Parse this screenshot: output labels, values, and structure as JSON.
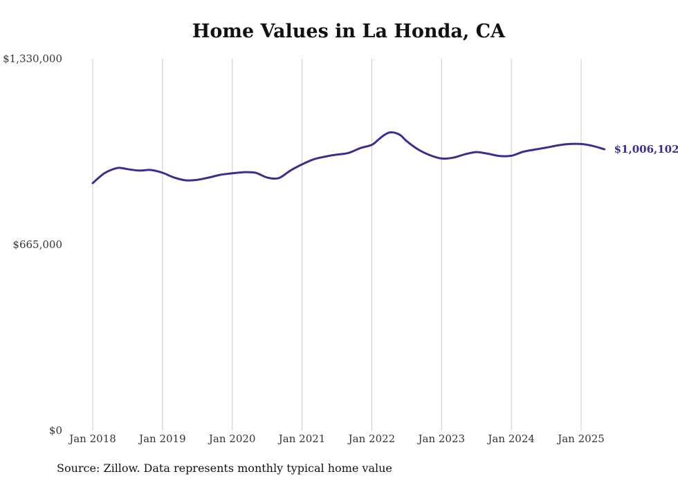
{
  "title": "Home Values in La Honda, CA",
  "source": "Source: Zillow. Data represents monthly typical home value",
  "colors": {
    "line": "#3b2e8c",
    "grid": "#c8c8c8"
  },
  "chart_data": {
    "type": "line",
    "title": "Home Values in La Honda, CA",
    "xlabel": "",
    "ylabel": "",
    "ylim": [
      0,
      1330000
    ],
    "y_ticks": [
      {
        "value": 0,
        "label": "$0"
      },
      {
        "value": 665000,
        "label": "$665,000"
      },
      {
        "value": 1330000,
        "label": "$1,330,000"
      }
    ],
    "x_ticks": [
      {
        "value": 0,
        "label": "Jan 2018"
      },
      {
        "value": 12,
        "label": "Jan 2019"
      },
      {
        "value": 24,
        "label": "Jan 2020"
      },
      {
        "value": 36,
        "label": "Jan 2021"
      },
      {
        "value": 48,
        "label": "Jan 2022"
      },
      {
        "value": 60,
        "label": "Jan 2023"
      },
      {
        "value": 72,
        "label": "Jan 2024"
      },
      {
        "value": 84,
        "label": "Jan 2025"
      }
    ],
    "x_unit": "months since Jan 2018",
    "grid": "vertical",
    "end_label": "$1,006,102",
    "series": [
      {
        "name": "",
        "x": [
          0,
          2,
          4,
          5,
          6,
          8,
          10,
          12,
          14,
          16,
          18,
          20,
          22,
          24,
          26,
          28,
          30,
          32,
          34,
          36,
          38,
          40,
          42,
          44,
          46,
          48,
          49,
          50,
          51,
          52,
          53,
          54,
          56,
          58,
          60,
          62,
          64,
          66,
          68,
          70,
          72,
          74,
          76,
          78,
          80,
          82,
          84,
          86,
          88
        ],
        "values": [
          885000,
          920000,
          938000,
          939000,
          935000,
          930000,
          932000,
          922000,
          905000,
          895000,
          897000,
          905000,
          915000,
          920000,
          924000,
          922000,
          905000,
          903000,
          930000,
          952000,
          970000,
          980000,
          987000,
          993000,
          1010000,
          1022000,
          1038000,
          1055000,
          1066000,
          1065000,
          1055000,
          1035000,
          1005000,
          985000,
          973000,
          976000,
          988000,
          996000,
          990000,
          982000,
          983000,
          997000,
          1005000,
          1012000,
          1020000,
          1025000,
          1025000,
          1018000,
          1006102
        ]
      }
    ]
  }
}
